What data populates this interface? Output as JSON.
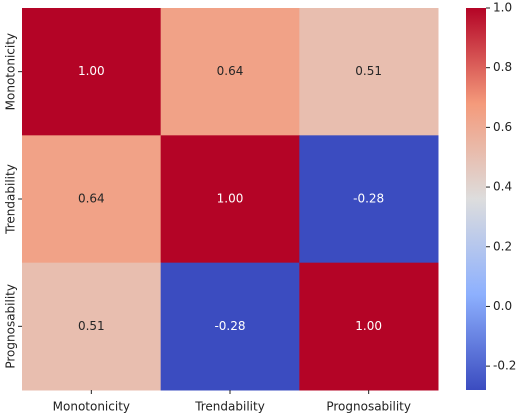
{
  "chart_data": {
    "type": "heatmap",
    "x_categories": [
      "Monotonicity",
      "Trendability",
      "Prognosability"
    ],
    "y_categories": [
      "Monotonicity",
      "Trendability",
      "Prognosability"
    ],
    "values": [
      [
        1,
        0.64,
        0.51
      ],
      [
        0.64,
        1,
        -0.28
      ],
      [
        0.51,
        -0.28,
        1
      ]
    ],
    "value_labels": [
      [
        "1.00",
        "0.64",
        "0.51"
      ],
      [
        "0.64",
        "1.00",
        "-0.28"
      ],
      [
        "0.51",
        "-0.28",
        "1.00"
      ]
    ],
    "colormap": "coolwarm",
    "colorbar_lim": [
      -0.28,
      1
    ],
    "colorbar_ticks": [
      -0.2,
      {
        "value": 0,
        "label": "0.0"
      },
      0.2,
      0.4,
      0.6,
      0.8,
      {
        "value": 1,
        "label": "1.0"
      }
    ]
  }
}
